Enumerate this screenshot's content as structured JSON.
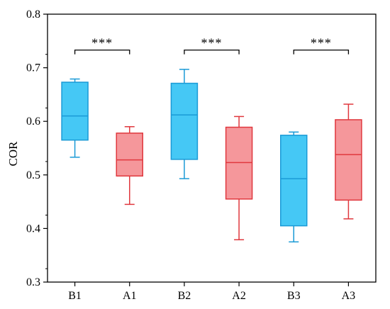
{
  "chart_data": {
    "type": "box",
    "title": "",
    "xlabel": "",
    "ylabel": "COR",
    "ylim": [
      0.3,
      0.8
    ],
    "yticks": [
      "0.3",
      "0.4",
      "0.5",
      "0.6",
      "0.7",
      "0.8"
    ],
    "grid": false,
    "legend": "none",
    "categories": [
      "B1",
      "A1",
      "B2",
      "A2",
      "B3",
      "A3"
    ],
    "boxes": [
      {
        "category": "B1",
        "min": 0.533,
        "q1": 0.565,
        "median": 0.61,
        "q3": 0.673,
        "max": 0.679,
        "color": "#45c8f5",
        "edge": "#1a9ad6"
      },
      {
        "category": "A1",
        "min": 0.445,
        "q1": 0.498,
        "median": 0.528,
        "q3": 0.578,
        "max": 0.59,
        "color": "#f5979b",
        "edge": "#e0383e"
      },
      {
        "category": "B2",
        "min": 0.493,
        "q1": 0.529,
        "median": 0.612,
        "q3": 0.671,
        "max": 0.697,
        "color": "#45c8f5",
        "edge": "#1a9ad6"
      },
      {
        "category": "A2",
        "min": 0.379,
        "q1": 0.455,
        "median": 0.523,
        "q3": 0.589,
        "max": 0.609,
        "color": "#f5979b",
        "edge": "#e0383e"
      },
      {
        "category": "B3",
        "min": 0.375,
        "q1": 0.405,
        "median": 0.493,
        "q3": 0.574,
        "max": 0.58,
        "color": "#45c8f5",
        "edge": "#1a9ad6"
      },
      {
        "category": "A3",
        "min": 0.418,
        "q1": 0.453,
        "median": 0.538,
        "q3": 0.603,
        "max": 0.632,
        "color": "#f5979b",
        "edge": "#e0383e"
      }
    ],
    "annotations": [
      {
        "from": "B1",
        "to": "A1",
        "y": 0.733,
        "label": "***"
      },
      {
        "from": "B2",
        "to": "A2",
        "y": 0.733,
        "label": "***"
      },
      {
        "from": "B3",
        "to": "A3",
        "y": 0.733,
        "label": "***"
      }
    ]
  }
}
